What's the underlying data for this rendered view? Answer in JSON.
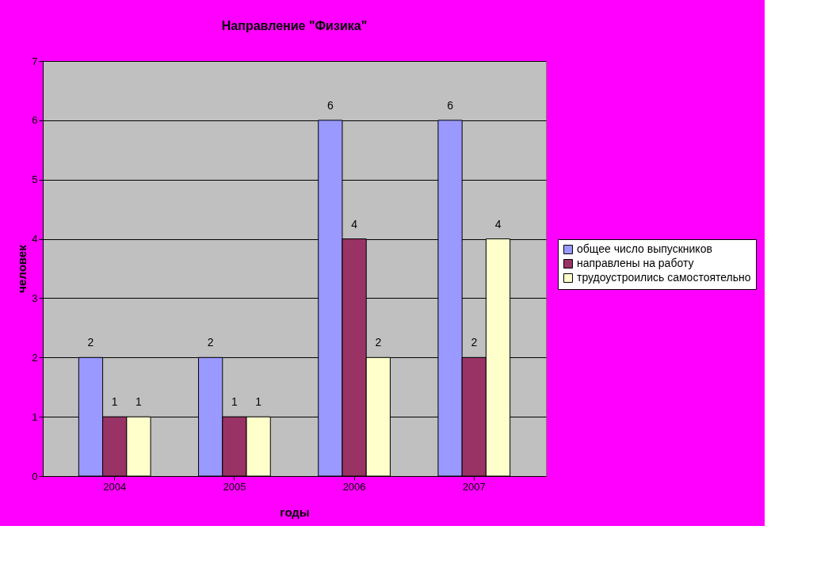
{
  "chart_data": {
    "type": "bar",
    "title": "Направление  \"Физика\"",
    "xlabel": "годы",
    "ylabel": "человек",
    "categories": [
      "2004",
      "2005",
      "2006",
      "2007"
    ],
    "series": [
      {
        "name": "общее число выпускников",
        "color": "#9999ff",
        "values": [
          2,
          2,
          6,
          6
        ]
      },
      {
        "name": "направлены на работу",
        "color": "#993366",
        "values": [
          1,
          1,
          4,
          2
        ]
      },
      {
        "name": "трудоустроились самостоятельно",
        "color": "#ffffcc",
        "values": [
          1,
          1,
          2,
          4
        ]
      }
    ],
    "ylim": [
      0,
      7
    ],
    "yticks": [
      0,
      1,
      2,
      3,
      4,
      5,
      6,
      7
    ],
    "grid": "y",
    "legend": "right",
    "data_labels": true
  }
}
